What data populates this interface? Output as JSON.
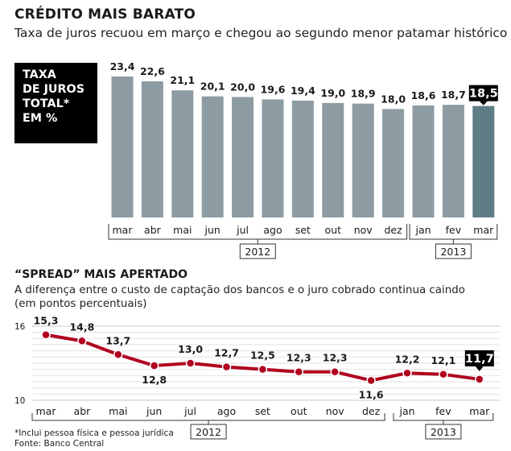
{
  "header": {
    "title": "CRÉDITO MAIS BARATO",
    "subtitle": "Taxa de juros recuou em março e chegou ao segundo menor patamar histórico"
  },
  "top_chart_label_lines": [
    "TAXA",
    "DE JUROS",
    "TOTAL*",
    "EM %"
  ],
  "section2": {
    "title": "“SPREAD” MAIS APERTADO",
    "subtitle_line1": "A diferença entre o custo de captação dos bancos e o juro cobrado continua caindo",
    "subtitle_line2": "(em pontos percentuais)"
  },
  "footnotes": {
    "note": "*Inclui pessoa física e pessoa jurídica",
    "source": "Fonte: Banco Central"
  },
  "colors": {
    "bar": "#8d9ca3",
    "bar_highlight": "#5f7d85",
    "line": "#b0001e",
    "callout_bg": "#000000",
    "callout_text": "#ffffff"
  },
  "chart_data": [
    {
      "type": "bar",
      "categories": [
        "mar",
        "abr",
        "mai",
        "jun",
        "jul",
        "ago",
        "set",
        "out",
        "nov",
        "dez",
        "jan",
        "fev",
        "mar"
      ],
      "value_labels": [
        "23,4",
        "22,6",
        "21,1",
        "20,1",
        "20,0",
        "19,6",
        "19,4",
        "19,0",
        "18,9",
        "18,0",
        "18,6",
        "18,7",
        "18,5"
      ],
      "values": [
        23.4,
        22.6,
        21.1,
        20.1,
        20.0,
        19.6,
        19.4,
        19.0,
        18.9,
        18.0,
        18.6,
        18.7,
        18.5
      ],
      "year_groups": [
        {
          "label": "2012",
          "from": 0,
          "to": 9
        },
        {
          "label": "2013",
          "from": 10,
          "to": 12
        }
      ],
      "highlight_index": 12
    },
    {
      "type": "line",
      "categories": [
        "mar",
        "abr",
        "mai",
        "jun",
        "jul",
        "ago",
        "set",
        "out",
        "nov",
        "dez",
        "jan",
        "fev",
        "mar"
      ],
      "value_labels": [
        "15,3",
        "14,8",
        "13,7",
        "12,8",
        "13,0",
        "12,7",
        "12,5",
        "12,3",
        "12,3",
        "11,6",
        "12,2",
        "12,1",
        "11,7"
      ],
      "values": [
        15.3,
        14.8,
        13.7,
        12.8,
        13.0,
        12.7,
        12.5,
        12.3,
        12.3,
        11.6,
        12.2,
        12.1,
        11.7
      ],
      "y_ticks": [
        "16",
        "10"
      ],
      "ylim": [
        10,
        16
      ],
      "grid": true,
      "year_groups": [
        {
          "label": "2012",
          "from": 0,
          "to": 9
        },
        {
          "label": "2013",
          "from": 10,
          "to": 12
        }
      ],
      "highlight_index": 12
    }
  ]
}
